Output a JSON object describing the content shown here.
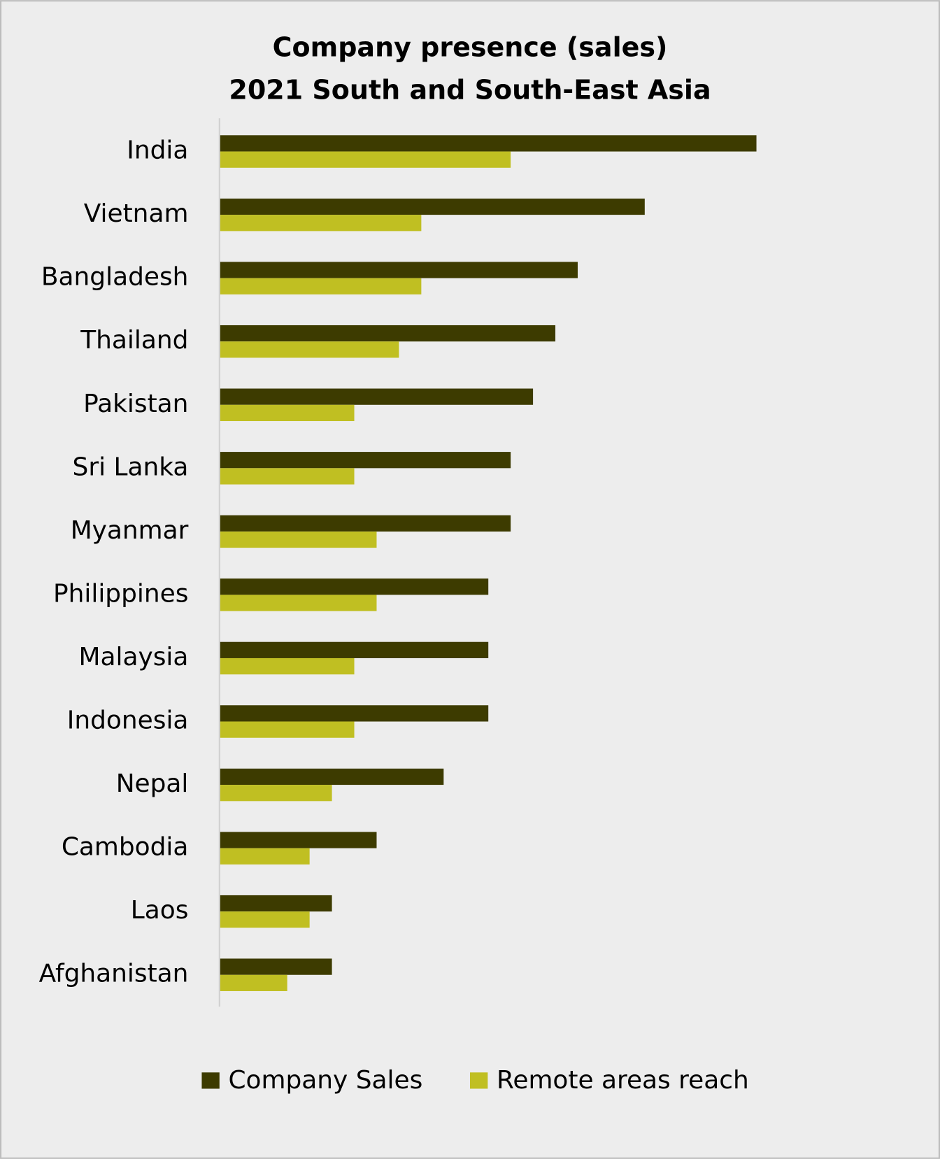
{
  "chart_data": {
    "type": "hbar",
    "title": [
      "Company presence (sales)",
      "2021 South and South-East Asia"
    ],
    "categories": [
      "India",
      "Vietnam",
      "Bangladesh",
      "Thailand",
      "Pakistan",
      "Sri Lanka",
      "Myanmar",
      "Philippines",
      "Malaysia",
      "Indonesia",
      "Nepal",
      "Cambodia",
      "Laos",
      "Afghanistan"
    ],
    "series": [
      {
        "name": "Company Sales",
        "color": "#3d3b00",
        "values": [
          24,
          19,
          16,
          15,
          14,
          13,
          13,
          12,
          12,
          12,
          10,
          7,
          5,
          5
        ]
      },
      {
        "name": "Remote areas reach",
        "color": "#c0bf22",
        "values": [
          13,
          9,
          9,
          8,
          6,
          6,
          7,
          7,
          6,
          6,
          5,
          4,
          4,
          3
        ]
      }
    ],
    "xlim": [
      0,
      30
    ],
    "legend": "bottom"
  }
}
